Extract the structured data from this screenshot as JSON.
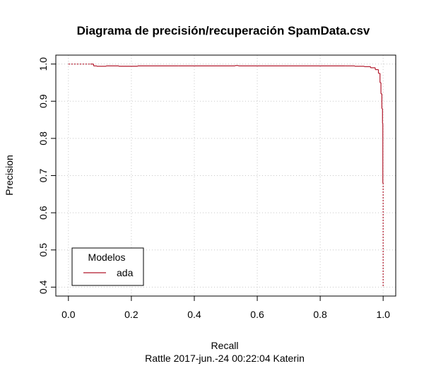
{
  "chart_data": {
    "type": "line",
    "title": "Diagrama de precisión/recuperación  SpamData.csv",
    "xlabel": "Recall",
    "ylabel": "Precision",
    "subtitle": "Rattle 2017-jun.-24 00:22:04 Katerin",
    "xlim": [
      0.0,
      1.0
    ],
    "ylim": [
      0.4,
      1.0
    ],
    "xticks": [
      "0.0",
      "0.2",
      "0.4",
      "0.6",
      "0.8",
      "1.0"
    ],
    "yticks": [
      "0.4",
      "0.5",
      "0.6",
      "0.7",
      "0.8",
      "0.9",
      "1.0"
    ],
    "grid": true,
    "legend": {
      "title": "Modelos",
      "position": "bottom-left",
      "entries": [
        "ada"
      ]
    },
    "series": [
      {
        "name": "ada",
        "color": "#b2182b",
        "x": [
          0.0,
          0.07,
          0.08,
          0.09,
          0.12,
          0.16,
          0.22,
          0.35,
          0.53,
          0.54,
          0.7,
          0.88,
          0.91,
          0.94,
          0.96,
          0.975,
          0.985,
          0.99,
          0.993,
          0.996,
          0.998,
          0.999,
          1.0
        ],
        "y": [
          1.0,
          1.0,
          0.995,
          0.994,
          0.995,
          0.994,
          0.995,
          0.995,
          0.996,
          0.995,
          0.995,
          0.995,
          0.994,
          0.993,
          0.99,
          0.985,
          0.975,
          0.95,
          0.92,
          0.88,
          0.84,
          0.68,
          0.4
        ]
      }
    ]
  }
}
